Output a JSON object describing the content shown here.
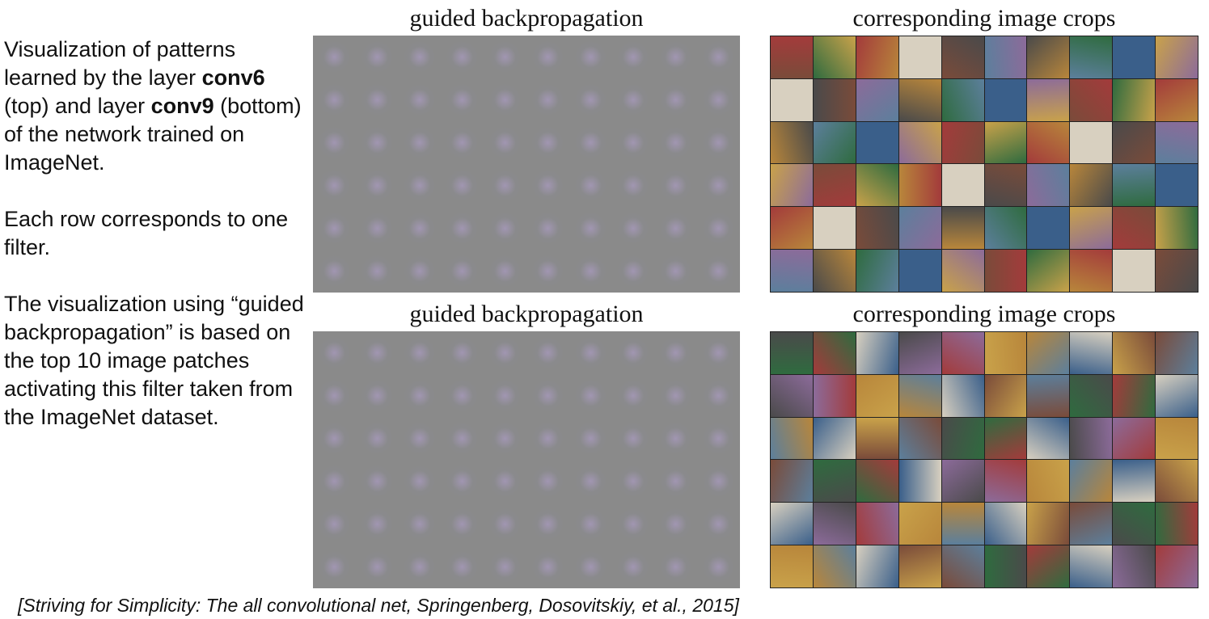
{
  "description": {
    "p1": {
      "part1": "Visualization of patterns learned by the layer ",
      "layer1": "conv6",
      "part2": " (top) and layer ",
      "layer2": "conv9",
      "part3": " (bottom) of the network trained on ImageNet."
    },
    "p2": "Each row corresponds to one filter.",
    "p3": "The visualization using “guided backpropagation” is based on the top 10 image patches activating this filter taken from the ImageNet dataset."
  },
  "panels": {
    "top_left_title": "guided backpropagation",
    "top_right_title": "corresponding image crops",
    "bottom_left_title": "guided backpropagation",
    "bottom_right_title": "corresponding image crops",
    "rows": 6,
    "cols": 10
  },
  "citation": "[Striving for Simplicity: The all convolutional net, Springenberg, Dosovitskiy, et al., 2015]"
}
